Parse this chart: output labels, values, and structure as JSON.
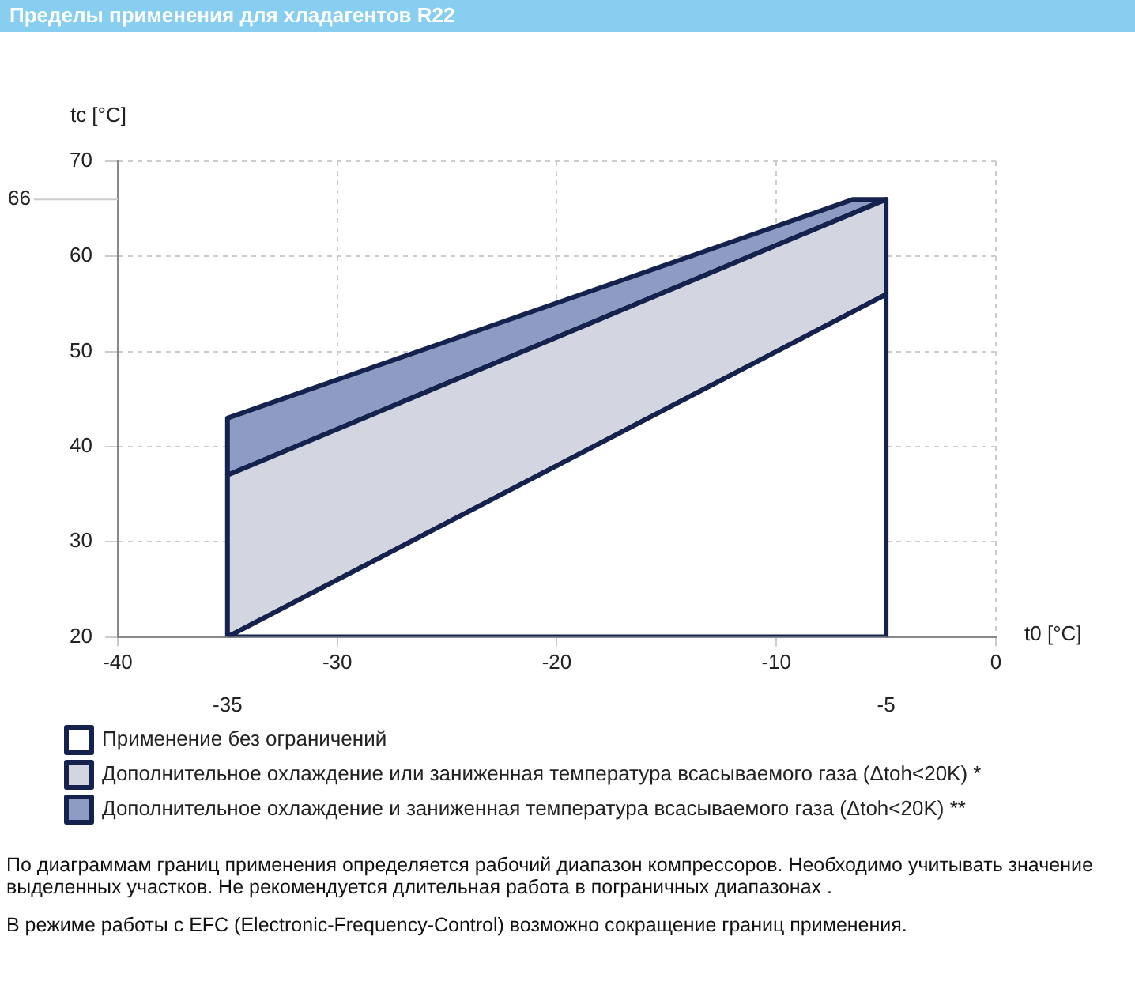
{
  "chart_data": {
    "type": "area",
    "title": "Пределы применения для хладагентов R22",
    "xlabel": "t0 [°C]",
    "ylabel": "tc [°C]",
    "xlim": [
      -40,
      0
    ],
    "xticks": [
      -40,
      -30,
      -20,
      -10,
      0
    ],
    "x2lim": [
      -40,
      0
    ],
    "x2ticks": [
      -35,
      -5
    ],
    "ylim": [
      20,
      70
    ],
    "yticks": [
      20,
      30,
      40,
      50,
      60,
      70
    ],
    "ref_lines": [
      {
        "axis": "y",
        "value": 66,
        "label": "66",
        "color": "#cccccc"
      }
    ],
    "grid": true,
    "legend": "bottom",
    "marker": "none",
    "series": [
      {
        "name": "Применение без ограничений",
        "color": "#ffffff",
        "x": [
          -35,
          -5,
          -5,
          -35
        ],
        "values": [
          20,
          56,
          20,
          20
        ]
      },
      {
        "name": "Дополнительное охлаждение или заниженная температура всасываемого газа (Δtoh<20K) *",
        "color": "#d3d6e0",
        "x": [
          -35,
          -35,
          -5,
          -5,
          -35
        ],
        "values": [
          20,
          37,
          66,
          56,
          20
        ]
      },
      {
        "name": "Дополнительное охлаждение и заниженная температура всасываемого газа (Δtoh<20K) **",
        "color": "#8e9cc4",
        "x": [
          -35,
          -35,
          -6.5,
          -5,
          -35
        ],
        "values": [
          37,
          43,
          66,
          66,
          37
        ]
      }
    ],
    "annotations": [
      "По диаграммам границ применения определяется рабочий диапазон компрессоров. Необходимо учитывать значение выделенных участков. Не рекомендуется длительная работа в пограничных диапазонах .",
      "В режиме работы с EFC (Electronic-Frequency-Control) возможно сокращение границ применения."
    ]
  }
}
